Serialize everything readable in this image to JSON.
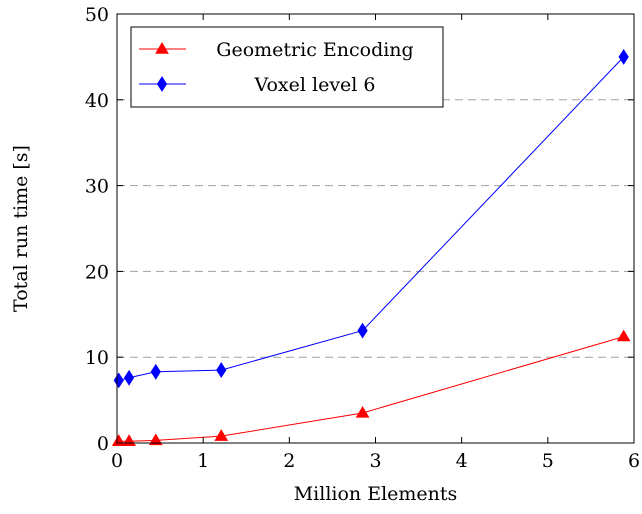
{
  "chart_data": {
    "type": "line",
    "xlabel": "Million Elements",
    "ylabel": "Total run time [s]",
    "xlim": [
      0,
      6
    ],
    "ylim": [
      0,
      50
    ],
    "xticks": [
      0,
      1,
      2,
      3,
      4,
      5,
      6
    ],
    "yticks": [
      0,
      10,
      20,
      30,
      40,
      50
    ],
    "grid": "horizontal-dashed",
    "legend_position": "top-left",
    "series": [
      {
        "name": "Geometric Encoding",
        "color": "#ff0000",
        "marker": "triangle",
        "x": [
          0.02,
          0.14,
          0.45,
          1.21,
          2.85,
          5.88
        ],
        "y": [
          0.2,
          0.2,
          0.3,
          0.8,
          3.5,
          12.4
        ]
      },
      {
        "name": "Voxel level 6",
        "color": "#0000ff",
        "marker": "diamond",
        "x": [
          0.02,
          0.14,
          0.45,
          1.21,
          2.85,
          5.88
        ],
        "y": [
          7.3,
          7.6,
          8.3,
          8.5,
          13.1,
          45.0
        ]
      }
    ]
  }
}
